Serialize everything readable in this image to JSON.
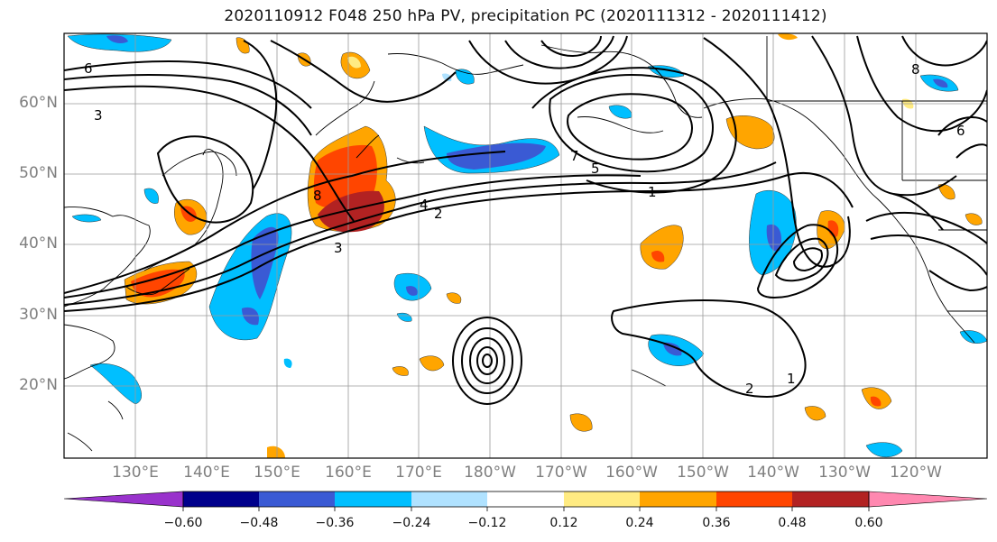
{
  "title": "2020110912 F048 250 hPa PV, precipitation PC (2020111312 - 2020111412)",
  "map": {
    "lat_labels": [
      "60°N",
      "50°N",
      "40°N",
      "30°N",
      "20°N"
    ],
    "lon_labels": [
      "130°E",
      "140°E",
      "150°E",
      "160°E",
      "170°E",
      "180°W",
      "170°W",
      "160°W",
      "150°W",
      "140°W",
      "130°W",
      "120°W"
    ],
    "contour_labels": [
      "6",
      "3",
      "8",
      "2",
      "7",
      "4",
      "5",
      "1",
      "3",
      "6",
      "2",
      "1",
      "8"
    ]
  },
  "colorbar": {
    "tick_labels": [
      "−0.60",
      "−0.48",
      "−0.36",
      "−0.24",
      "−0.12",
      "0.12",
      "0.24",
      "0.36",
      "0.48",
      "0.60"
    ],
    "colors": [
      "#9932cc",
      "#00008b",
      "#3a5ad4",
      "#00bfff",
      "#b0e2ff",
      "#ffffff",
      "#ffeb82",
      "#ffa500",
      "#ff4500",
      "#b22222",
      "#ff88b0"
    ]
  }
}
